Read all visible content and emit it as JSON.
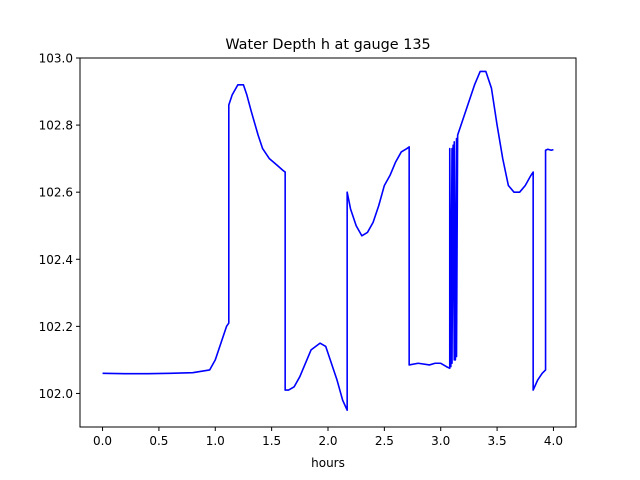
{
  "chart_data": {
    "type": "line",
    "title": "Water Depth h at gauge 135",
    "xlabel": "hours",
    "ylabel": "",
    "xlim": [
      -0.2,
      4.2
    ],
    "ylim": [
      101.9,
      103.0
    ],
    "xticks": [
      0.0,
      0.5,
      1.0,
      1.5,
      2.0,
      2.5,
      3.0,
      3.5,
      4.0
    ],
    "xtick_labels": [
      "0.0",
      "0.5",
      "1.0",
      "1.5",
      "2.0",
      "2.5",
      "3.0",
      "3.5",
      "4.0"
    ],
    "yticks": [
      102.0,
      102.2,
      102.4,
      102.6,
      102.8,
      103.0
    ],
    "ytick_labels": [
      "102.0",
      "102.2",
      "102.4",
      "102.6",
      "102.8",
      "103.0"
    ],
    "grid": false,
    "legend": "none",
    "series": [
      {
        "color": "#0000ff",
        "x": [
          0.0,
          0.2,
          0.4,
          0.6,
          0.8,
          0.95,
          1.0,
          1.05,
          1.1,
          1.12,
          1.12,
          1.15,
          1.2,
          1.25,
          1.28,
          1.32,
          1.38,
          1.42,
          1.48,
          1.55,
          1.6,
          1.62,
          1.62,
          1.65,
          1.7,
          1.75,
          1.85,
          1.93,
          1.98,
          2.02,
          2.08,
          2.13,
          2.17,
          2.17,
          2.2,
          2.25,
          2.3,
          2.35,
          2.4,
          2.45,
          2.5,
          2.55,
          2.6,
          2.65,
          2.7,
          2.72,
          2.72,
          2.8,
          2.9,
          2.95,
          3.0,
          3.05,
          3.08,
          3.08,
          3.09,
          3.1,
          3.1,
          3.11,
          3.12,
          3.12,
          3.13,
          3.14,
          3.14,
          3.15,
          3.16,
          3.2,
          3.3,
          3.35,
          3.4,
          3.45,
          3.5,
          3.55,
          3.6,
          3.65,
          3.7,
          3.75,
          3.8,
          3.82,
          3.82,
          3.86,
          3.9,
          3.93,
          3.93,
          3.95,
          3.98,
          4.0
        ],
        "y": [
          102.06,
          102.059,
          102.059,
          102.06,
          102.062,
          102.07,
          102.1,
          102.15,
          102.2,
          102.21,
          102.86,
          102.89,
          102.92,
          102.92,
          102.89,
          102.84,
          102.77,
          102.73,
          102.7,
          102.68,
          102.665,
          102.66,
          102.01,
          102.01,
          102.02,
          102.05,
          102.13,
          102.15,
          102.14,
          102.1,
          102.04,
          101.98,
          101.95,
          102.6,
          102.55,
          102.5,
          102.47,
          102.48,
          102.51,
          102.56,
          102.62,
          102.65,
          102.69,
          102.72,
          102.73,
          102.735,
          102.085,
          102.09,
          102.085,
          102.09,
          102.09,
          102.08,
          102.075,
          102.73,
          102.08,
          102.73,
          102.09,
          102.74,
          102.1,
          102.75,
          102.1,
          102.76,
          102.11,
          102.77,
          102.78,
          102.82,
          102.92,
          102.96,
          102.96,
          102.91,
          102.8,
          102.7,
          102.62,
          102.6,
          102.6,
          102.62,
          102.65,
          102.66,
          102.01,
          102.04,
          102.06,
          102.07,
          102.725,
          102.728,
          102.725,
          102.727
        ]
      }
    ]
  }
}
